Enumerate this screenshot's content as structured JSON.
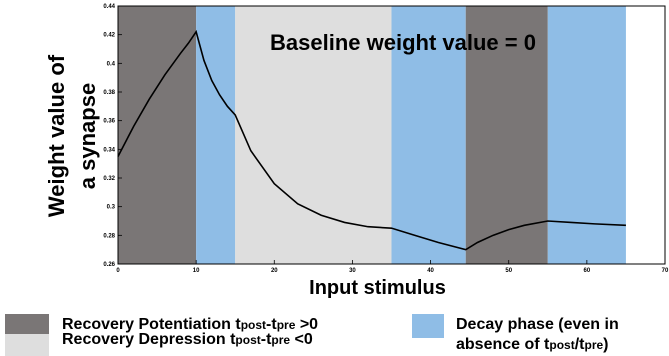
{
  "chart_data": {
    "type": "line",
    "title": "",
    "annotation": "Baseline weight value = 0",
    "xlabel": "Input stimulus",
    "ylabel_lines": [
      "Weight value of",
      "a synapse"
    ],
    "xlim": [
      0,
      70
    ],
    "ylim": [
      0.26,
      0.44
    ],
    "x_ticks": [
      "0",
      "10",
      "20",
      "30",
      "40",
      "50",
      "60",
      "70"
    ],
    "y_ticks": [
      "0.26",
      "0.28",
      "0.3",
      "0.32",
      "0.34",
      "0.36",
      "0.38",
      "0.4",
      "0.42",
      "0.44"
    ],
    "regions": [
      {
        "x0": 0,
        "x1": 10,
        "kind": "potentiation"
      },
      {
        "x0": 10,
        "x1": 15,
        "kind": "decay"
      },
      {
        "x0": 15,
        "x1": 35,
        "kind": "depression"
      },
      {
        "x0": 35,
        "x1": 44.5,
        "kind": "decay"
      },
      {
        "x0": 44.5,
        "x1": 55,
        "kind": "potentiation"
      },
      {
        "x0": 55,
        "x1": 65,
        "kind": "decay"
      }
    ],
    "series": [
      {
        "x": [
          0,
          2,
          4,
          6,
          8,
          9,
          10,
          11,
          12,
          13,
          14,
          15,
          17,
          20,
          23,
          26,
          29,
          32,
          35,
          38,
          41,
          44.5,
          46,
          48,
          50,
          52,
          55,
          58,
          61,
          65
        ],
        "y": [
          0.335,
          0.356,
          0.375,
          0.392,
          0.407,
          0.414,
          0.422,
          0.402,
          0.388,
          0.378,
          0.37,
          0.364,
          0.339,
          0.316,
          0.302,
          0.294,
          0.289,
          0.286,
          0.285,
          0.28,
          0.275,
          0.27,
          0.275,
          0.28,
          0.284,
          0.287,
          0.29,
          0.289,
          0.288,
          0.287
        ]
      }
    ],
    "grid": false
  },
  "colors": {
    "potentiation": "#7a7676",
    "decay": "#8fbde6",
    "depression": "#dedede",
    "line": "#000000"
  },
  "legend": [
    {
      "kind": "potentiation",
      "text": "Recovery Potentiation t",
      "sub1": "post",
      "mid": "-t",
      "sub2": "pre",
      "tail": " >0"
    },
    {
      "kind": "decay",
      "line1": "Decay phase (even in",
      "line2": "absence of t",
      "sub1": "post",
      "mid": "/t",
      "sub2": "pre",
      "tail": ")"
    },
    {
      "kind": "depression",
      "text": "Recovery Depression t",
      "sub1": "post",
      "mid": "-t",
      "sub2": "pre",
      "tail": " <0"
    }
  ]
}
